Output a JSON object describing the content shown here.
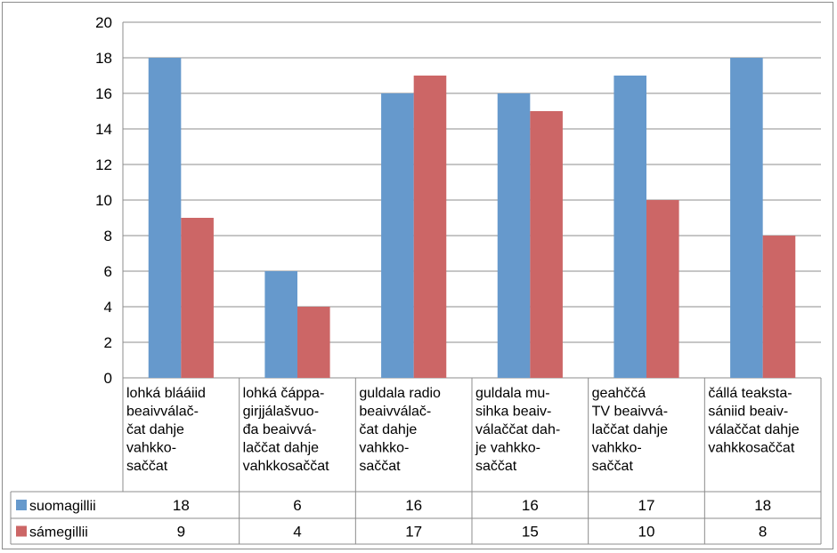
{
  "chart_data": {
    "type": "bar",
    "title": "",
    "xlabel": "",
    "ylabel": "",
    "ylim": [
      0,
      20
    ],
    "yticks": [
      0,
      2,
      4,
      6,
      8,
      10,
      12,
      14,
      16,
      18,
      20
    ],
    "grid": true,
    "legend": "data-table-left",
    "categories": [
      [
        "lohká blááiid",
        "beaivválač-",
        "čat dahje",
        "vahkko-",
        "saččat"
      ],
      [
        "lohká čáppa-",
        "girjjálašvuo-",
        "đa beaivvá-",
        "laččat dahje",
        "vahkkosaččat"
      ],
      [
        "guldala radio",
        "beaivválač-",
        "čat dahje",
        "vahkko-",
        "saččat"
      ],
      [
        "guldala mu-",
        "sihka beaiv-",
        "válaččat dah-",
        "je vahkko-",
        "saččat"
      ],
      [
        "geahččá",
        "TV beaivvá-",
        "laččat dahje",
        "vahkko-",
        "saččat"
      ],
      [
        "čállá teaksta-",
        "sániid beaiv-",
        "válaččat dahje",
        "vahkkosaččat"
      ]
    ],
    "series": [
      {
        "name": "suomagillii",
        "color": "#6699CC",
        "values": [
          18,
          6,
          16,
          16,
          17,
          18
        ]
      },
      {
        "name": "sámegillii",
        "color": "#CC6666",
        "values": [
          9,
          4,
          17,
          15,
          10,
          8
        ]
      }
    ]
  }
}
